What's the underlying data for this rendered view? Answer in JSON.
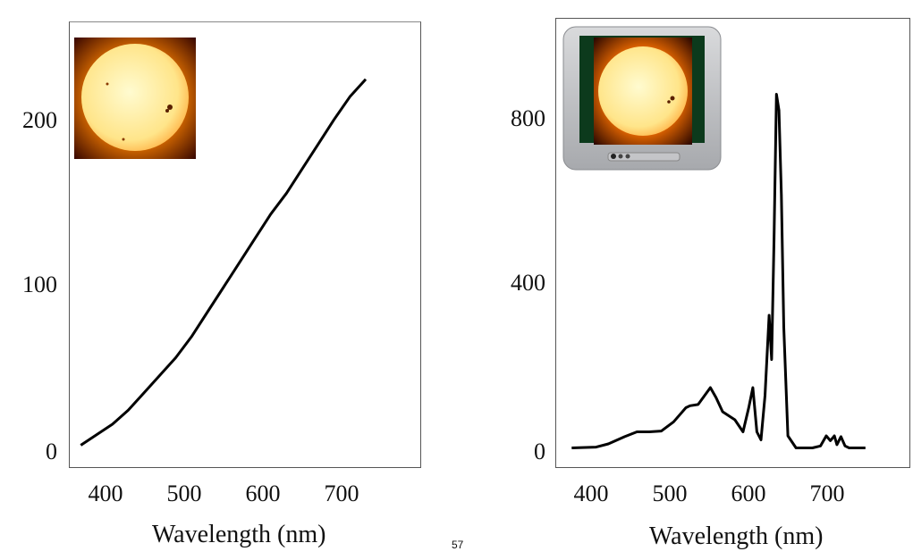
{
  "chart_data": [
    {
      "type": "line",
      "title": "",
      "xlabel": "Wavelength (nm)",
      "ylabel": "",
      "xlim": [
        355,
        800
      ],
      "ylim": [
        -5,
        250
      ],
      "xticks": [
        "400",
        "500",
        "600",
        "700"
      ],
      "yticks": [
        "0",
        "100",
        "200"
      ],
      "series": [
        {
          "x": [
            370,
            390,
            410,
            430,
            450,
            470,
            490,
            510,
            530,
            550,
            570,
            590,
            610,
            630,
            650,
            670,
            690,
            710,
            730
          ],
          "y": [
            8,
            14,
            20,
            28,
            38,
            48,
            58,
            70,
            84,
            98,
            112,
            126,
            140,
            152,
            166,
            180,
            194,
            207,
            217
          ]
        }
      ],
      "inset": "sun-icon",
      "grid": false
    },
    {
      "type": "line",
      "title": "",
      "xlabel": "Wavelength (nm)",
      "ylabel": "",
      "xlim": [
        355,
        790
      ],
      "ylim": [
        -50,
        1070
      ],
      "xticks": [
        "400",
        "500",
        "600",
        "700"
      ],
      "yticks": [
        "0",
        "400",
        "800"
      ],
      "series": [
        {
          "x": [
            375,
            405,
            420,
            440,
            455,
            470,
            485,
            500,
            515,
            520,
            530,
            545,
            552,
            560,
            575,
            585,
            592,
            597,
            602,
            607,
            612,
            617,
            620,
            623,
            626,
            629,
            632,
            635,
            640,
            650,
            670,
            680,
            687,
            692,
            697,
            700,
            705,
            710,
            715,
            735
          ],
          "y": [
            0,
            2,
            10,
            28,
            40,
            40,
            42,
            65,
            100,
            105,
            108,
            150,
            125,
            90,
            70,
            40,
            100,
            150,
            40,
            20,
            130,
            330,
            220,
            520,
            880,
            840,
            630,
            300,
            30,
            0,
            0,
            5,
            30,
            18,
            30,
            8,
            28,
            5,
            0,
            0
          ]
        }
      ],
      "inset": "tv-sun-icon",
      "grid": false
    }
  ],
  "footer": {
    "page_number": "57"
  }
}
